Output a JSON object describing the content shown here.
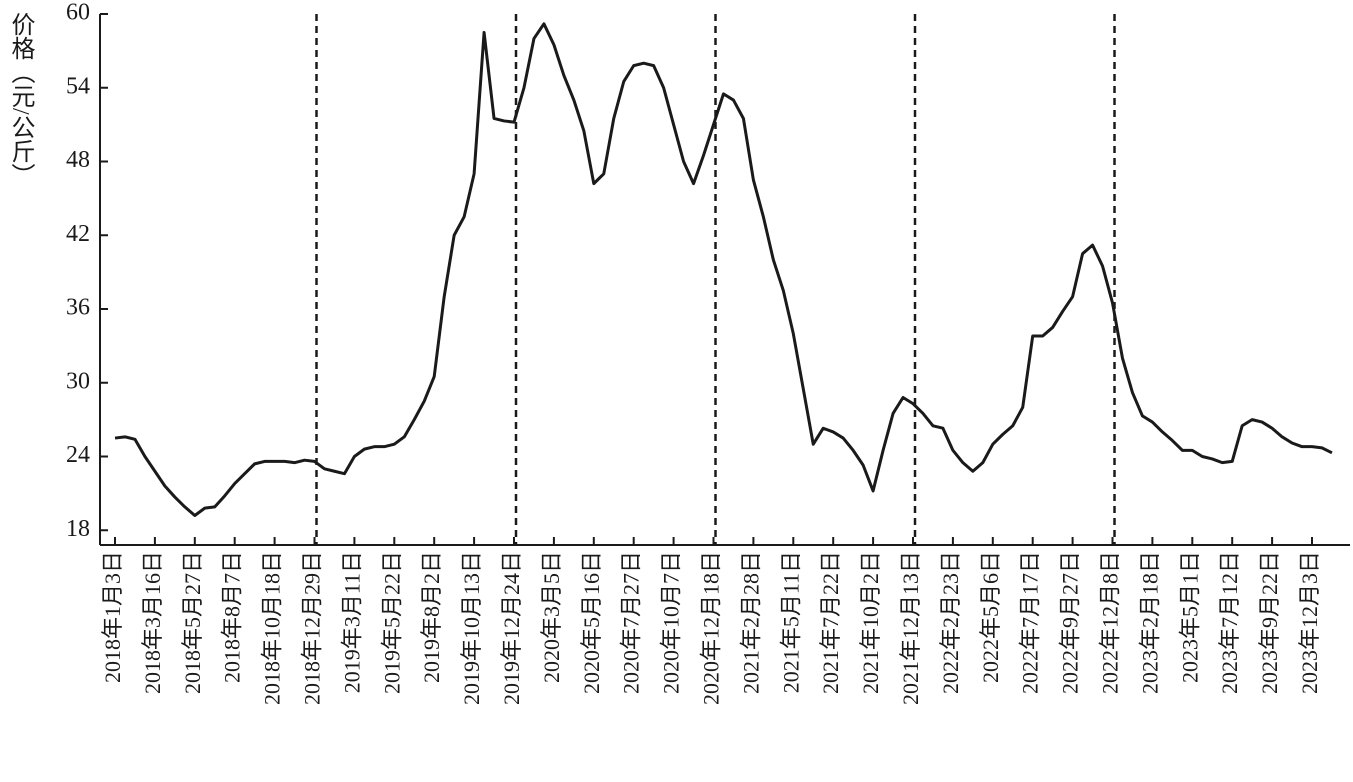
{
  "chart_data": {
    "type": "line",
    "y_axis_label": "价格（元/公斤）",
    "categories": [
      "2018年1月3日",
      null,
      null,
      null,
      "2018年3月16日",
      null,
      null,
      null,
      "2018年5月27日",
      null,
      null,
      null,
      "2018年8月7日",
      null,
      null,
      null,
      "2018年10月18日",
      null,
      null,
      null,
      "2018年12月29日",
      null,
      null,
      null,
      "2019年3月11日",
      null,
      null,
      null,
      "2019年5月22日",
      null,
      null,
      null,
      "2019年8月2日",
      null,
      null,
      null,
      "2019年10月13日",
      null,
      null,
      null,
      "2019年12月24日",
      null,
      null,
      null,
      "2020年3月5日",
      null,
      null,
      null,
      "2020年5月16日",
      null,
      null,
      null,
      "2020年7月27日",
      null,
      null,
      null,
      "2020年10月7日",
      null,
      null,
      null,
      "2020年12月18日",
      null,
      null,
      null,
      "2021年2月28日",
      null,
      null,
      null,
      "2021年5月11日",
      null,
      null,
      null,
      "2021年7月22日",
      null,
      null,
      null,
      "2021年10月2日",
      null,
      null,
      null,
      "2021年12月13日",
      null,
      null,
      null,
      "2022年2月23日",
      null,
      null,
      null,
      "2022年5月6日",
      null,
      null,
      null,
      "2022年7月17日",
      null,
      null,
      null,
      "2022年9月27日",
      null,
      null,
      null,
      "2022年12月8日",
      null,
      null,
      null,
      "2023年2月18日",
      null,
      null,
      null,
      "2023年5月1日",
      null,
      null,
      null,
      "2023年7月12日",
      null,
      null,
      null,
      "2023年9月22日",
      null,
      null,
      null,
      "2023年12月3日",
      null,
      null
    ],
    "values": [
      25.5,
      25.6,
      25.4,
      24.0,
      22.8,
      21.6,
      20.7,
      19.9,
      19.2,
      19.8,
      19.9,
      20.8,
      21.8,
      22.6,
      23.4,
      23.6,
      23.6,
      23.6,
      23.5,
      23.7,
      23.6,
      23.0,
      22.8,
      22.6,
      24.0,
      24.6,
      24.8,
      24.8,
      25.0,
      25.6,
      27.0,
      28.5,
      30.5,
      37,
      42,
      43.5,
      47,
      58.5,
      51.5,
      51.3,
      51.2,
      54,
      58,
      59.2,
      57.5,
      55,
      53,
      50.5,
      46.2,
      47,
      51.5,
      54.5,
      55.8,
      56.0,
      55.8,
      54,
      51,
      48,
      46.2,
      48.5,
      51,
      53.5,
      53.0,
      51.5,
      46.5,
      43.5,
      40,
      37.5,
      34,
      29.5,
      25,
      26.3,
      26.0,
      25.5,
      24.5,
      23.3,
      21.2,
      24.5,
      27.5,
      28.8,
      28.3,
      27.5,
      26.5,
      26.3,
      24.5,
      23.5,
      22.8,
      23.5,
      25.0,
      25.8,
      26.5,
      28,
      33.8,
      33.8,
      34.5,
      35.8,
      37.0,
      40.5,
      41.2,
      39.5,
      36.5,
      32,
      29.2,
      27.3,
      26.8,
      26.0,
      25.3,
      24.5,
      24.5,
      24.0,
      23.8,
      23.5,
      23.6,
      26.5,
      27.0,
      26.8,
      26.3,
      25.6,
      25.1,
      24.8,
      24.8,
      24.7,
      24.3
    ],
    "color": "#1a1a1a",
    "ylim": [
      16.8,
      60
    ],
    "yticks": [
      18,
      24,
      30,
      36,
      42,
      48,
      54,
      60
    ],
    "dashed_lines_at": [
      "2018年12月29日",
      "2019年12月24日",
      "2020年12月18日",
      "2021年12月13日",
      "2022年12月8日"
    ]
  }
}
